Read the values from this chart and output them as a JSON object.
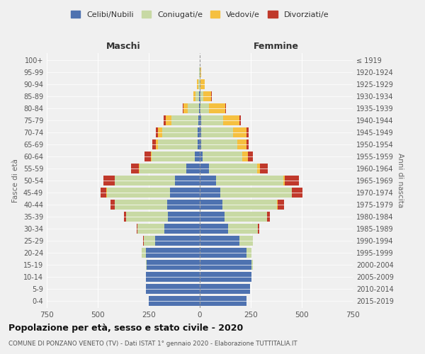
{
  "age_groups": [
    "0-4",
    "5-9",
    "10-14",
    "15-19",
    "20-24",
    "25-29",
    "30-34",
    "35-39",
    "40-44",
    "45-49",
    "50-54",
    "55-59",
    "60-64",
    "65-69",
    "70-74",
    "75-79",
    "80-84",
    "85-89",
    "90-94",
    "95-99",
    "100+"
  ],
  "birth_years": [
    "2015-2019",
    "2010-2014",
    "2005-2009",
    "2000-2004",
    "1995-1999",
    "1990-1994",
    "1985-1989",
    "1980-1984",
    "1975-1979",
    "1970-1974",
    "1965-1969",
    "1960-1964",
    "1955-1959",
    "1950-1954",
    "1945-1949",
    "1940-1944",
    "1935-1939",
    "1930-1934",
    "1925-1929",
    "1920-1924",
    "≤ 1919"
  ],
  "males": {
    "celibe": [
      250,
      265,
      265,
      260,
      265,
      220,
      175,
      155,
      160,
      145,
      120,
      65,
      25,
      10,
      10,
      8,
      5,
      2,
      0,
      0,
      0
    ],
    "coniugato": [
      0,
      0,
      0,
      5,
      20,
      55,
      130,
      205,
      255,
      310,
      295,
      230,
      210,
      195,
      175,
      130,
      55,
      20,
      8,
      2,
      0
    ],
    "vedovo": [
      0,
      0,
      0,
      0,
      0,
      0,
      0,
      0,
      2,
      2,
      2,
      2,
      5,
      10,
      20,
      30,
      20,
      8,
      5,
      0,
      0
    ],
    "divorziato": [
      0,
      0,
      0,
      0,
      0,
      2,
      5,
      10,
      20,
      30,
      55,
      40,
      30,
      18,
      12,
      8,
      5,
      2,
      0,
      0,
      0
    ]
  },
  "females": {
    "nubile": [
      230,
      245,
      255,
      255,
      230,
      195,
      140,
      120,
      110,
      100,
      80,
      45,
      15,
      8,
      8,
      6,
      4,
      2,
      0,
      0,
      0
    ],
    "coniugata": [
      0,
      0,
      0,
      5,
      25,
      65,
      145,
      210,
      270,
      350,
      330,
      235,
      195,
      175,
      155,
      110,
      40,
      15,
      5,
      2,
      0
    ],
    "vedova": [
      0,
      0,
      0,
      0,
      0,
      0,
      0,
      0,
      2,
      3,
      5,
      15,
      25,
      45,
      65,
      80,
      80,
      40,
      20,
      5,
      0
    ],
    "divorziata": [
      0,
      0,
      0,
      0,
      0,
      2,
      5,
      15,
      30,
      50,
      70,
      40,
      25,
      12,
      10,
      6,
      4,
      2,
      0,
      0,
      0
    ]
  },
  "colors": {
    "celibe_nubile": "#4e72b0",
    "coniugato": "#c8d9a4",
    "vedovo": "#f5c040",
    "divorziato": "#c0392b"
  },
  "xlim": 750,
  "title": "Popolazione per età, sesso e stato civile - 2020",
  "subtitle": "COMUNE DI PONZANO VENETO (TV) - Dati ISTAT 1° gennaio 2020 - Elaborazione TUTTITALIA.IT",
  "ylabel_left": "Fasce di età",
  "ylabel_right": "Anni di nascita",
  "legend_labels": [
    "Celibi/Nubili",
    "Coniugati/e",
    "Vedovi/e",
    "Divorziati/e"
  ],
  "maschi_label": "Maschi",
  "femmine_label": "Femmine",
  "bg_color": "#f0f0f0",
  "bar_height": 0.85
}
